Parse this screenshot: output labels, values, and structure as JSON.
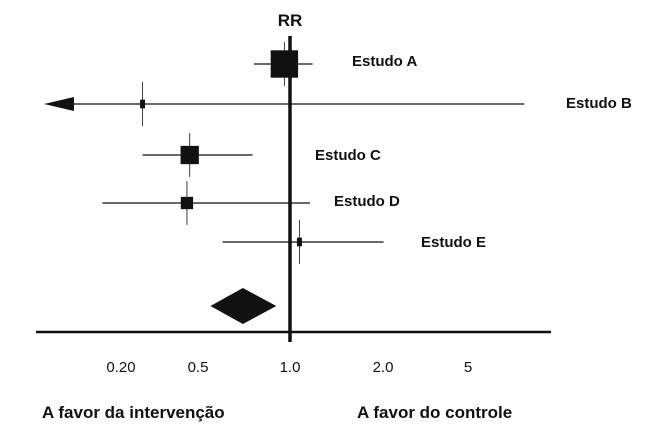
{
  "chart_data": {
    "type": "forest",
    "title": "RR",
    "scale": "log",
    "reference_line": 1.0,
    "x_ticks": [
      "0.20",
      "0.5",
      "1.0",
      "2.0",
      "5"
    ],
    "x_tick_values": [
      0.2,
      0.5,
      1.0,
      2.0,
      5.0
    ],
    "direction_labels": {
      "left": "A favor da intervenção",
      "right": "A favor do controle"
    },
    "studies": [
      {
        "name": "Estudo A",
        "rr": 0.95,
        "ci_low": 0.72,
        "ci_high": 1.23,
        "weight": 0.9
      },
      {
        "name": "Estudo B",
        "rr": 0.26,
        "ci_low": 0.08,
        "ci_high": 8.5,
        "ci_low_truncated": true,
        "weight": 0.18
      },
      {
        "name": "Estudo C",
        "rr": 0.4,
        "ci_low": 0.26,
        "ci_high": 0.71,
        "weight": 0.55
      },
      {
        "name": "Estudo D",
        "rr": 0.39,
        "ci_low": 0.18,
        "ci_high": 1.2,
        "weight": 0.32
      },
      {
        "name": "Estudo E",
        "rr": 1.09,
        "ci_low": 0.54,
        "ci_high": 2.35,
        "weight": 0.18
      }
    ],
    "pooled": {
      "rr": 0.65,
      "ci_low": 0.52,
      "ci_high": 0.82
    },
    "colors": {
      "ink": "#111111",
      "background": "#ffffff"
    }
  }
}
